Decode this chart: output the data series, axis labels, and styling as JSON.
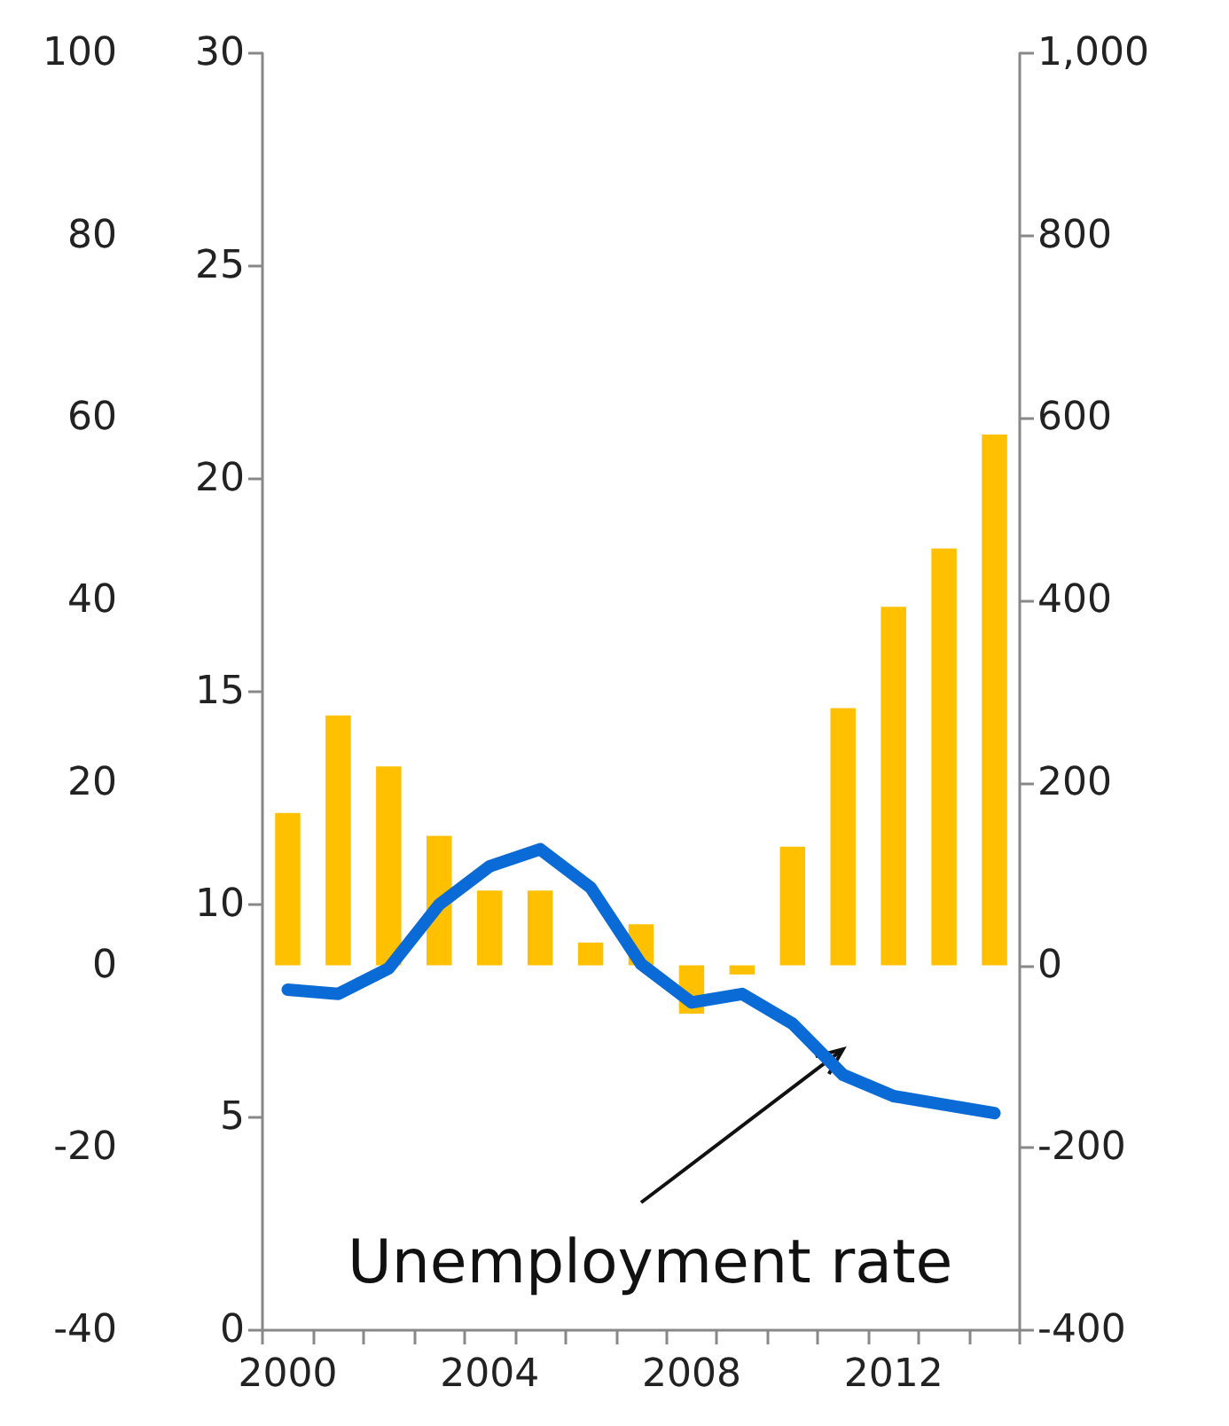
{
  "chart_data": {
    "type": "bar",
    "categories": [
      "2000",
      null,
      null,
      null,
      "2004",
      null,
      null,
      null,
      "2008",
      null,
      null,
      null,
      "2012",
      null,
      null
    ],
    "series": [
      {
        "axis": "y2",
        "color": "#ffc000",
        "values": [
          167,
          274,
          218,
          142,
          82,
          82,
          25,
          45,
          -53,
          -10,
          130,
          282,
          393,
          457,
          582
        ]
      },
      {
        "type": "line",
        "axis": "y",
        "color": "#0a6ad6",
        "values": [
          8.0,
          7.9,
          8.5,
          10.0,
          10.9,
          11.3,
          10.4,
          8.6,
          7.7,
          7.9,
          7.2,
          6.0,
          5.5,
          5.3,
          5.1
        ]
      }
    ],
    "ylim": [
      0,
      30
    ],
    "yticks": [
      0,
      5,
      10,
      15,
      20,
      25,
      30
    ],
    "y2lim": [
      -400,
      1000
    ],
    "y2ticks": [
      -400,
      -200,
      0,
      200,
      400,
      600,
      800,
      {
        "value": 1000,
        "label": "1,000"
      }
    ],
    "y3lim": [
      -40,
      100
    ],
    "y3ticks": [
      -40,
      -20,
      0,
      20,
      40,
      60,
      80,
      100
    ],
    "annotations": [
      "Unemployment rate"
    ],
    "grid": false,
    "line_style": "solid"
  }
}
